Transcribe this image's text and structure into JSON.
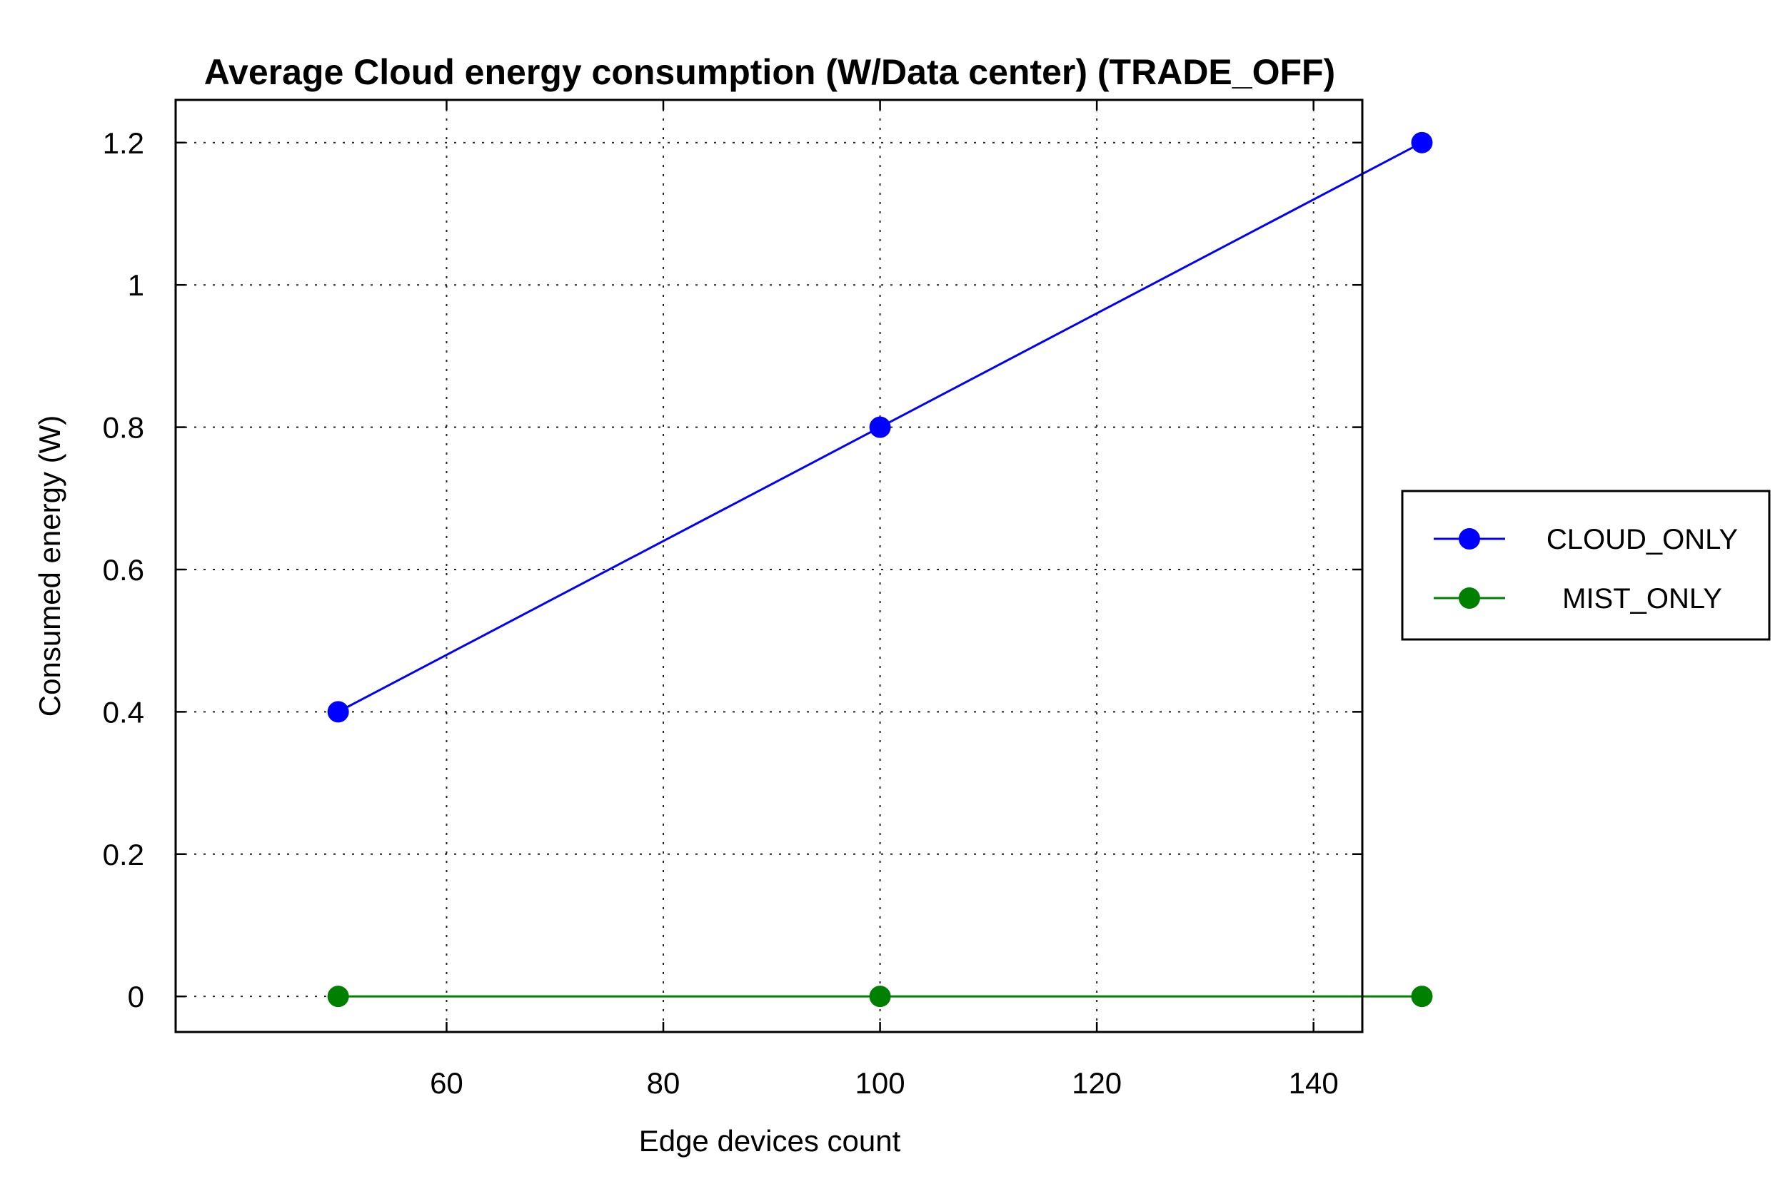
{
  "chart_data": {
    "type": "line",
    "title": "Average Cloud energy consumption (W/Data center) (TRADE_OFF)",
    "xlabel": "Edge devices count",
    "ylabel": "Consumed energy (W)",
    "x": [
      50,
      100,
      150
    ],
    "xlim": [
      35,
      144.5
    ],
    "ylim": [
      -0.05,
      1.26
    ],
    "xticks": [
      60,
      80,
      100,
      120,
      140
    ],
    "yticks": [
      0,
      0.2,
      0.4,
      0.6,
      0.8,
      1,
      1.2
    ],
    "xtick_labels": [
      "60",
      "80",
      "100",
      "120",
      "140"
    ],
    "ytick_labels": [
      "0",
      "0.2",
      "0.4",
      "0.6",
      "0.8",
      "1",
      "1.2"
    ],
    "grid": true,
    "legend_position": "right-outside",
    "series": [
      {
        "name": "CLOUD_ONLY",
        "values": [
          0.4,
          0.8,
          1.2
        ],
        "color": "#0000ff",
        "marker": "circle"
      },
      {
        "name": "MIST_ONLY",
        "values": [
          0,
          0,
          0
        ],
        "color": "#008000",
        "marker": "circle"
      }
    ]
  }
}
